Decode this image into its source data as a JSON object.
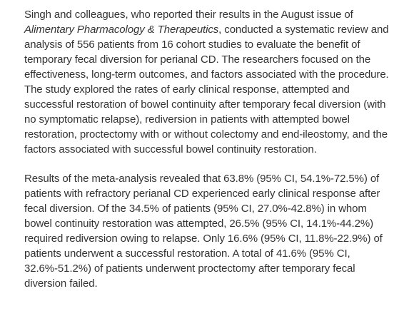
{
  "article": {
    "paragraph_1": {
      "before_journal": "Singh and colleagues, who reported their results in the August issue of ",
      "journal": "Alimentary Pharmacology & Therapeutics",
      "after_journal": ", conducted a systematic review and analysis of 556 patients from 16 cohort studies to evaluate the benefit of temporary fecal diversion for perianal CD. The researchers focused on the effectiveness, long-term outcomes, and factors associated with the procedure. The study explored the rates of early clinical response, attempted and successful restoration of bowel continuity after temporary fecal diversion (with no symptomatic relapse), rediversion in patients with attempted bowel restoration, proctectomy with or without colectomy and end-ileostomy, and the factors associated with successful bowel continuity restoration."
    },
    "paragraph_2": "Results of the meta-analysis revealed that 63.8% (95% CI, 54.1%-72.5%) of patients with refractory perianal CD experienced early clinical response after fecal diversion. Of the 34.5% of patients (95% CI, 27.0%-42.8%) in whom bowel continuity restoration was attempted, 26.5% (95% CI, 14.1%-44.2%) required rediversion owing to relapse. Only 16.6% (95% CI, 11.8%-22.9%) of patients underwent a successful restoration. A total of 41.6% (95% CI, 32.6%-51.2%) of patients underwent proctectomy after temporary fecal diversion failed."
  }
}
